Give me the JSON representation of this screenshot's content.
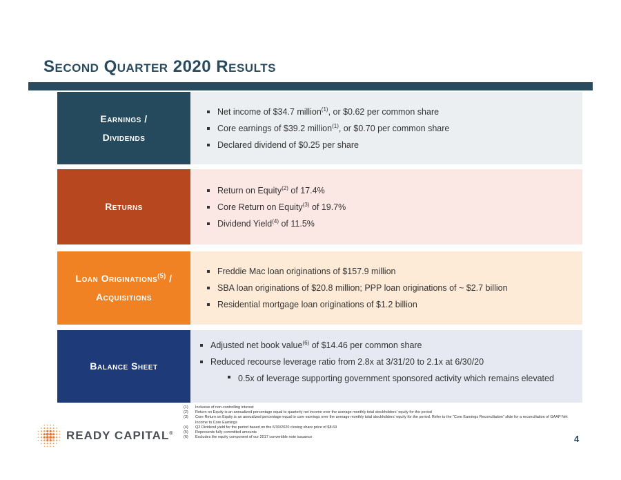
{
  "title": "Second Quarter 2020 Results",
  "colors": {
    "earnings": "#264a5d",
    "earnings_bg": "#eceff1",
    "returns": "#b6471f",
    "returns_bg": "#fbe8e5",
    "loans": "#f08223",
    "loans_bg": "#fdebd8",
    "balance": "#1e3a78",
    "balance_bg": "#e6e9f2"
  },
  "sections": {
    "earnings": {
      "label_line1": "Earnings /",
      "label_line2": "Dividends",
      "b1_pre": "Net income of $34.7 million",
      "b1_sup": "(1)",
      "b1_post": ", or $0.62 per common share",
      "b2_pre": "Core earnings of $39.2 million",
      "b2_sup": "(1)",
      "b2_post": ", or $0.70 per common share",
      "b3": "Declared dividend of $0.25 per share"
    },
    "returns": {
      "label": "Returns",
      "b1_pre": "Return on Equity",
      "b1_sup": "(2)",
      "b1_post": " of 17.4%",
      "b2_pre": "Core Return on Equity",
      "b2_sup": "(3)",
      "b2_post": " of 19.7%",
      "b3_pre": "Dividend Yield",
      "b3_sup": "(4)",
      "b3_post": " of 11.5%"
    },
    "loans": {
      "label_pre": "Loan Originations",
      "label_sup": "(5)",
      "label_post": " /",
      "label_line2": "Acquisitions",
      "b1": "Freddie Mac loan originations of $157.9 million",
      "b2": "SBA loan originations of $20.8 million; PPP loan originations of ~ $2.7 billion",
      "b3": "Residential mortgage loan originations of $1.2 billion"
    },
    "balance": {
      "label": "Balance Sheet",
      "b1_pre": "Adjusted net book value",
      "b1_sup": "(6)",
      "b1_post": " of $14.46 per common share",
      "b2": "Reduced recourse leverage ratio from 2.8x at 3/31/20 to 2.1x at 6/30/20",
      "b2_sub": "0.5x of leverage supporting government sponsored activity which remains elevated"
    }
  },
  "footnotes": [
    {
      "num": "(1)",
      "text": "Inclusive of non-controlling interest"
    },
    {
      "num": "(2)",
      "text": "Return on Equity is an annualized percentage equal to quarterly net income over the average monthly total stockholders’ equity for the period"
    },
    {
      "num": "(3)",
      "text": "Core Return on Equity is an annualized percentage equal to core earnings over the average monthly total stockholders’ equity for the period. Refer to the “Core Earnings Reconciliation” slide for a reconciliation of GAAP Net Income to Core Earnings"
    },
    {
      "num": "(4)",
      "text": "Q2 Dividend yield for the period based on the 6/30/2020 closing share price of $8.69"
    },
    {
      "num": "(5)",
      "text": "Represents fully committed amounts"
    },
    {
      "num": "(6)",
      "text": "Excludes the equity component of our 2017 convertible note issuance"
    }
  ],
  "logo": {
    "text": "READY CAPITAL",
    "reg": "®",
    "icon": "dot-grid-logo-icon"
  },
  "page_number": "4"
}
